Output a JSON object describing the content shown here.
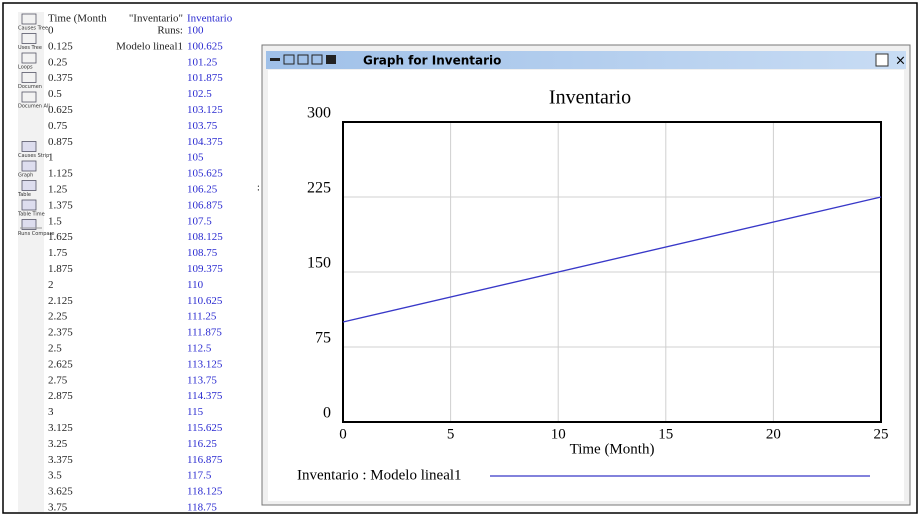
{
  "toolbar": [
    "Causes Tree",
    "Uses Tree",
    "Loops",
    "Documen",
    "Documen All",
    "Causes Strip",
    "Graph",
    "Table",
    "Table Time",
    "Runs Compare"
  ],
  "table": {
    "rows": [
      [
        "Time (Month",
        "\"Inventario\"",
        "Inventario"
      ],
      [
        "0",
        "Runs:",
        "100"
      ],
      [
        "0.125",
        "Modelo lineal1",
        "100.625"
      ],
      [
        "0.25",
        "",
        "101.25"
      ],
      [
        "0.375",
        "",
        "101.875"
      ],
      [
        "0.5",
        "",
        "102.5"
      ],
      [
        "0.625",
        "",
        "103.125"
      ],
      [
        "0.75",
        "",
        "103.75"
      ],
      [
        "0.875",
        "",
        "104.375"
      ],
      [
        "1",
        "",
        "105"
      ],
      [
        "1.125",
        "",
        "105.625"
      ],
      [
        "1.25",
        "",
        "106.25"
      ],
      [
        "1.375",
        "",
        "106.875"
      ],
      [
        "1.5",
        "",
        "107.5"
      ],
      [
        "1.625",
        "",
        "108.125"
      ],
      [
        "1.75",
        "",
        "108.75"
      ],
      [
        "1.875",
        "",
        "109.375"
      ],
      [
        "2",
        "",
        "110"
      ],
      [
        "2.125",
        "",
        "110.625"
      ],
      [
        "2.25",
        "",
        "111.25"
      ],
      [
        "2.375",
        "",
        "111.875"
      ],
      [
        "2.5",
        "",
        "112.5"
      ],
      [
        "2.625",
        "",
        "113.125"
      ],
      [
        "2.75",
        "",
        "113.75"
      ],
      [
        "2.875",
        "",
        "114.375"
      ],
      [
        "3",
        "",
        "115"
      ],
      [
        "3.125",
        "",
        "115.625"
      ],
      [
        "3.25",
        "",
        "116.25"
      ],
      [
        "3.375",
        "",
        "116.875"
      ],
      [
        "3.5",
        "",
        "117.5"
      ],
      [
        "3.625",
        "",
        "118.125"
      ],
      [
        "3.75",
        "",
        "118.75"
      ]
    ]
  },
  "window": {
    "title": "Graph for Inventario"
  },
  "chart_data": {
    "type": "line",
    "title": "Inventario",
    "x_label": "Time (Month)",
    "x": [
      0,
      25
    ],
    "series": [
      {
        "name": "Inventario : Modelo lineal1",
        "color": "#3838c8",
        "values": [
          100,
          225
        ]
      }
    ],
    "xlim": [
      0,
      25
    ],
    "xticks": [
      0,
      5,
      10,
      15,
      20,
      25
    ],
    "ylim": [
      0,
      300
    ],
    "yticks": [
      0,
      75,
      150,
      225,
      300
    ],
    "grid": true,
    "legend": "bottom"
  }
}
